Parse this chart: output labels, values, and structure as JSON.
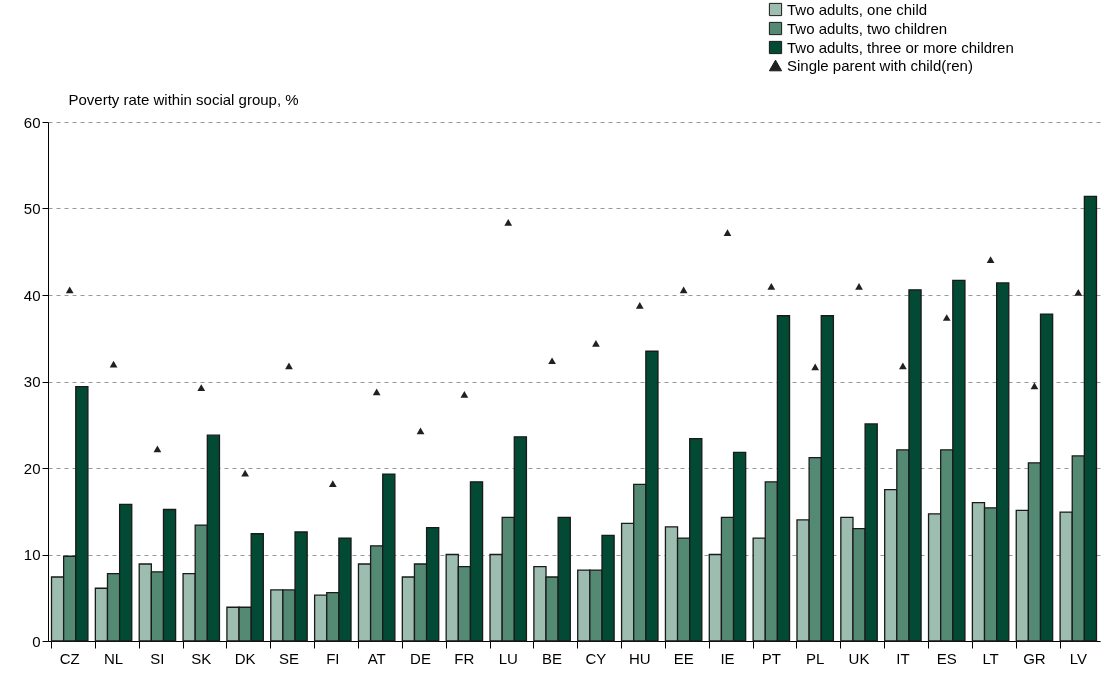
{
  "chart_data": {
    "type": "bar",
    "ylabel": "Poverty rate within social group, %",
    "categories": [
      "CZ",
      "NL",
      "SI",
      "SK",
      "DK",
      "SE",
      "FI",
      "AT",
      "DE",
      "FR",
      "LU",
      "BE",
      "CY",
      "HU",
      "EE",
      "IE",
      "PT",
      "PL",
      "UK",
      "IT",
      "ES",
      "LT",
      "GR",
      "LV"
    ],
    "series": [
      {
        "name": "Two adults, one child",
        "color": "#9dbdb0",
        "values": [
          7.4,
          6.1,
          8.9,
          7.8,
          3.9,
          5.9,
          5.3,
          8.9,
          7.4,
          10.0,
          10.0,
          8.6,
          8.2,
          13.6,
          13.2,
          10.0,
          11.9,
          14.0,
          14.3,
          17.5,
          14.7,
          16.0,
          15.1,
          14.9
        ]
      },
      {
        "name": "Two adults,  two children",
        "color": "#548a74",
        "values": [
          9.8,
          7.8,
          8.0,
          13.4,
          3.9,
          5.9,
          5.6,
          11.0,
          8.9,
          8.6,
          14.3,
          7.4,
          8.2,
          18.1,
          11.9,
          14.3,
          18.4,
          21.2,
          13.0,
          22.1,
          22.1,
          15.4,
          20.6,
          21.4
        ]
      },
      {
        "name": "Two adults, three or more children",
        "color": "#024a33",
        "values": [
          29.4,
          15.8,
          15.2,
          23.8,
          12.4,
          12.6,
          11.9,
          19.3,
          13.1,
          18.4,
          23.6,
          14.3,
          12.2,
          33.5,
          23.4,
          21.8,
          37.6,
          37.6,
          25.1,
          40.6,
          41.7,
          41.4,
          37.8,
          51.4
        ]
      },
      {
        "name": "Single parent with child(ren)",
        "type": "scatter",
        "marker": "triangle",
        "color": "#231f20",
        "values": [
          40.6,
          32.0,
          22.2,
          29.3,
          19.4,
          31.8,
          18.2,
          28.8,
          24.3,
          28.5,
          48.4,
          32.4,
          34.4,
          38.8,
          40.6,
          47.2,
          41.0,
          31.7,
          41.0,
          31.8,
          37.4,
          44.1,
          29.5,
          40.3
        ]
      }
    ],
    "ylim": [
      0,
      60
    ],
    "yticks": [
      0,
      10,
      20,
      30,
      40,
      50,
      60
    ],
    "grid": "y",
    "legend": "top right"
  }
}
